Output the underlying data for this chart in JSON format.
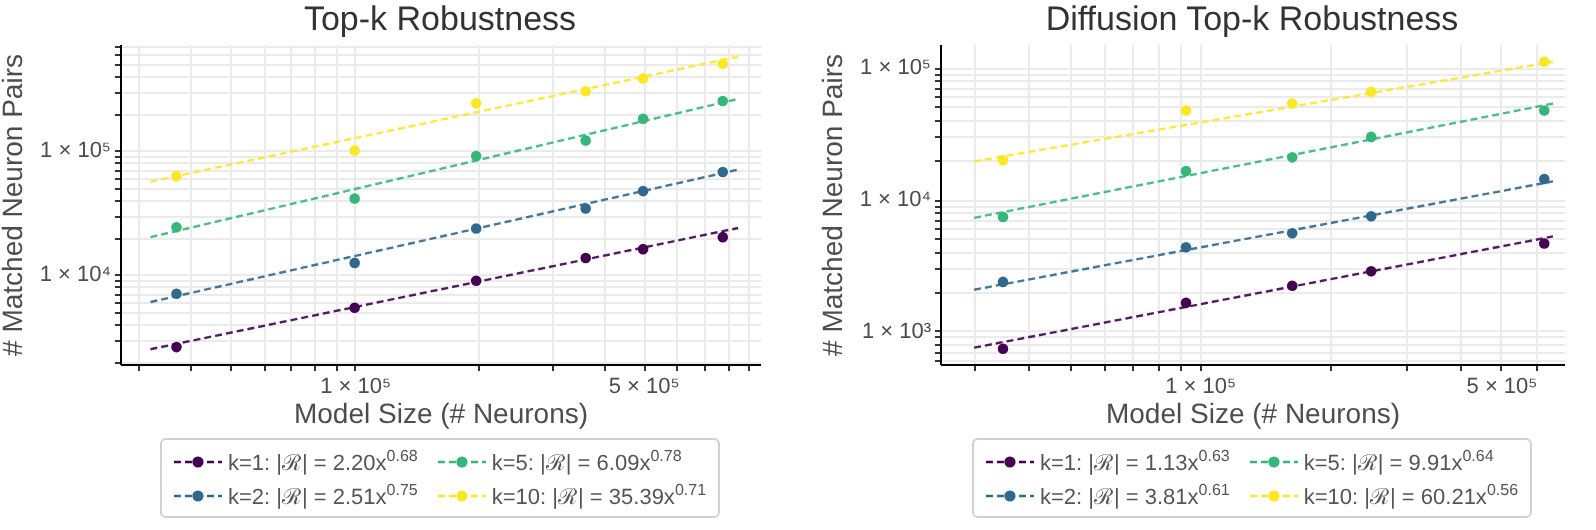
{
  "chart_data": [
    {
      "type": "scatter",
      "title": "Top-k Robustness",
      "xlabel": "Model Size (# Neurons)",
      "ylabel": "# Matched Neuron Pairs",
      "log": "xy",
      "grid": true,
      "legend": "bottom",
      "line_style": "dashed",
      "x": [
        37000,
        100000,
        197000,
        363000,
        500000,
        780000
      ],
      "xlim": [
        27000,
        960000
      ],
      "ylim": [
        1900,
        720000
      ],
      "xticks": [
        {
          "value": 30000,
          "label": null
        },
        {
          "value": 40000,
          "label": null
        },
        {
          "value": 50000,
          "label": null
        },
        {
          "value": 60000,
          "label": null
        },
        {
          "value": 70000,
          "label": null
        },
        {
          "value": 80000,
          "label": null
        },
        {
          "value": 90000,
          "label": null
        },
        {
          "value": 100000,
          "label": "1 × 10⁵"
        },
        {
          "value": 200000,
          "label": null
        },
        {
          "value": 300000,
          "label": null
        },
        {
          "value": 400000,
          "label": null
        },
        {
          "value": 500000,
          "label": "5 × 10⁵"
        },
        {
          "value": 600000,
          "label": null
        },
        {
          "value": 700000,
          "label": null
        },
        {
          "value": 800000,
          "label": null
        },
        {
          "value": 900000,
          "label": null
        }
      ],
      "yticks": [
        {
          "value": 2000,
          "label": null
        },
        {
          "value": 3000,
          "label": null
        },
        {
          "value": 4000,
          "label": null
        },
        {
          "value": 5000,
          "label": null
        },
        {
          "value": 6000,
          "label": null
        },
        {
          "value": 7000,
          "label": null
        },
        {
          "value": 8000,
          "label": null
        },
        {
          "value": 9000,
          "label": null
        },
        {
          "value": 10000,
          "label": "1 × 10⁴"
        },
        {
          "value": 20000,
          "label": null
        },
        {
          "value": 30000,
          "label": null
        },
        {
          "value": 40000,
          "label": null
        },
        {
          "value": 50000,
          "label": null
        },
        {
          "value": 60000,
          "label": null
        },
        {
          "value": 70000,
          "label": null
        },
        {
          "value": 80000,
          "label": null
        },
        {
          "value": 90000,
          "label": null
        },
        {
          "value": 100000,
          "label": "1 × 10⁵"
        },
        {
          "value": 200000,
          "label": null
        },
        {
          "value": 300000,
          "label": null
        },
        {
          "value": 400000,
          "label": null
        },
        {
          "value": 500000,
          "label": null
        },
        {
          "value": 600000,
          "label": null
        },
        {
          "value": 700000,
          "label": null
        }
      ],
      "series": [
        {
          "type": "line",
          "color": "#440154",
          "x": [
            32000,
            850000
          ],
          "values": [
            2500,
            23700
          ]
        },
        {
          "type": "line",
          "color": "#31688e",
          "x": [
            32000,
            850000
          ],
          "values": [
            6000,
            70000
          ]
        },
        {
          "type": "line",
          "color": "#35b779",
          "x": [
            32000,
            850000
          ],
          "values": [
            20000,
            260000
          ]
        },
        {
          "type": "line",
          "color": "#fde725",
          "x": [
            32000,
            850000
          ],
          "values": [
            56000,
            570000
          ]
        },
        {
          "name": "k=1: |ℛ| = 2.20x$^{0.68}$",
          "marker": "circle",
          "color": "#440154",
          "values": [
            2600,
            5400,
            8900,
            13600,
            16000,
            20000
          ]
        },
        {
          "name": "k=2: |ℛ| = 2.51x$^{0.75}$",
          "marker": "circle",
          "color": "#31688e",
          "values": [
            7000,
            12400,
            23500,
            34000,
            47000,
            67000
          ]
        },
        {
          "name": "k=5: |ℛ| = 6.09x$^{0.78}$",
          "marker": "circle",
          "color": "#35b779",
          "values": [
            24000,
            41000,
            90000,
            120000,
            180000,
            250000
          ]
        },
        {
          "name": "k=10: |ℛ| = 35.39x$^{0.71}$",
          "marker": "circle",
          "color": "#fde725",
          "values": [
            62000,
            100000,
            240000,
            300000,
            380000,
            500000
          ]
        }
      ]
    },
    {
      "type": "scatter",
      "title": "Diffusion Top-k Robustness",
      "xlabel": "Model Size (# Neurons)",
      "ylabel": "# Matched Neuron Pairs",
      "log": "xy",
      "grid": true,
      "legend": "bottom",
      "line_style": "dashed",
      "x": [
        35000,
        93000,
        164000,
        250000,
        630000
      ],
      "xlim": [
        25000,
        700000
      ],
      "ylim": [
        560,
        150000
      ],
      "xticks": [
        {
          "value": 30000,
          "label": null
        },
        {
          "value": 40000,
          "label": null
        },
        {
          "value": 50000,
          "label": null
        },
        {
          "value": 60000,
          "label": null
        },
        {
          "value": 70000,
          "label": null
        },
        {
          "value": 80000,
          "label": null
        },
        {
          "value": 90000,
          "label": null
        },
        {
          "value": 100000,
          "label": "1 × 10⁵"
        },
        {
          "value": 200000,
          "label": null
        },
        {
          "value": 300000,
          "label": null
        },
        {
          "value": 400000,
          "label": null
        },
        {
          "value": 500000,
          "label": "5 × 10⁵"
        },
        {
          "value": 600000,
          "label": null
        }
      ],
      "yticks": [
        {
          "value": 600,
          "label": null
        },
        {
          "value": 700,
          "label": null
        },
        {
          "value": 800,
          "label": null
        },
        {
          "value": 900,
          "label": null
        },
        {
          "value": 1000,
          "label": "1 × 10³"
        },
        {
          "value": 2000,
          "label": null
        },
        {
          "value": 3000,
          "label": null
        },
        {
          "value": 4000,
          "label": null
        },
        {
          "value": 5000,
          "label": null
        },
        {
          "value": 6000,
          "label": null
        },
        {
          "value": 7000,
          "label": null
        },
        {
          "value": 8000,
          "label": null
        },
        {
          "value": 9000,
          "label": null
        },
        {
          "value": 10000,
          "label": "1 × 10⁴"
        },
        {
          "value": 20000,
          "label": null
        },
        {
          "value": 30000,
          "label": null
        },
        {
          "value": 40000,
          "label": null
        },
        {
          "value": 50000,
          "label": null
        },
        {
          "value": 60000,
          "label": null
        },
        {
          "value": 70000,
          "label": null
        },
        {
          "value": 80000,
          "label": null
        },
        {
          "value": 90000,
          "label": null
        },
        {
          "value": 100000,
          "label": "1 × 10⁵"
        }
      ],
      "series": [
        {
          "type": "line",
          "color": "#440154",
          "x": [
            30000,
            660000
          ],
          "values": [
            745,
            5200
          ]
        },
        {
          "type": "line",
          "color": "#31688e",
          "x": [
            30000,
            660000
          ],
          "values": [
            2050,
            13600
          ]
        },
        {
          "type": "line",
          "color": "#35b779",
          "x": [
            30000,
            660000
          ],
          "values": [
            7200,
            53000
          ]
        },
        {
          "type": "line",
          "color": "#fde725",
          "x": [
            30000,
            660000
          ],
          "values": [
            19300,
            110000
          ]
        },
        {
          "name": "k=1: |ℛ| = 1.13x$^{0.63}$",
          "marker": "circle",
          "color": "#440154",
          "values": [
            730,
            1630,
            2200,
            2830,
            4600
          ]
        },
        {
          "name": "k=2: |ℛ| = 3.81x$^{0.61}$",
          "marker": "circle",
          "color": "#31688e",
          "values": [
            2350,
            4300,
            5500,
            7400,
            14200
          ]
        },
        {
          "name": "k=5: |ℛ| = 9.91x$^{0.64}$",
          "marker": "circle",
          "color": "#35b779",
          "values": [
            7300,
            16300,
            20700,
            29600,
            47000
          ]
        },
        {
          "name": "k=10: |ℛ| = 60.21x$^{0.56}$",
          "marker": "circle",
          "color": "#fde725",
          "values": [
            19700,
            47000,
            53000,
            65000,
            110000
          ]
        }
      ]
    }
  ]
}
